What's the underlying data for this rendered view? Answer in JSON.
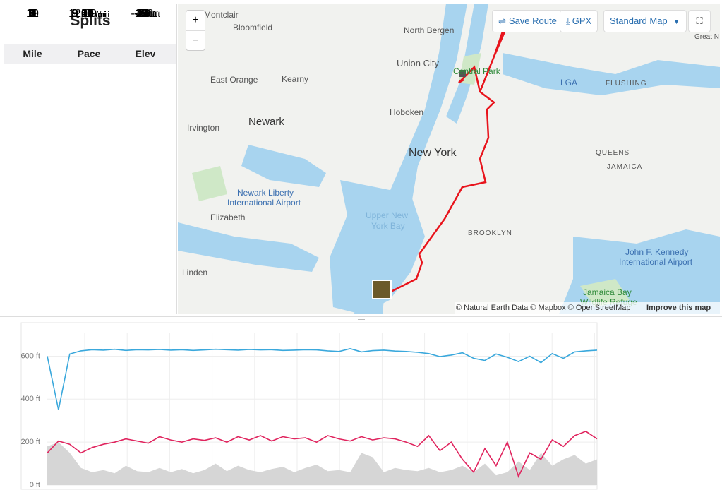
{
  "splits": {
    "title": "Splits",
    "columns": [
      "Mile",
      "Pace",
      "Elev"
    ],
    "rows": [
      [
        "1",
        "12:09",
        "/mi",
        "43",
        "ft"
      ],
      [
        "2",
        "9:36",
        "/mi",
        "-103",
        "ft"
      ],
      [
        "3",
        "9:01",
        "/mi",
        "14",
        "ft"
      ],
      [
        "4",
        "9:02",
        "/mi",
        "21",
        "ft"
      ],
      [
        "5",
        "8:54",
        "/mi",
        "-53",
        "ft"
      ],
      [
        "6",
        "9:12",
        "/mi",
        "20",
        "ft"
      ],
      [
        "7",
        "9:02",
        "/mi",
        "-30",
        "ft"
      ],
      [
        "8",
        "9:20",
        "/mi",
        "48",
        "ft"
      ],
      [
        "9",
        "9:03",
        "/mi",
        "-9",
        "ft"
      ],
      [
        "10",
        "9:11",
        "/mi",
        "-20",
        "ft"
      ],
      [
        "11",
        "9:27",
        "/mi",
        "5",
        "ft"
      ],
      [
        "12",
        "9:26",
        "/mi",
        "-13",
        "ft"
      ]
    ]
  },
  "map": {
    "controls": {
      "zoom_in": "+",
      "zoom_out": "−",
      "save_route": "Save Route",
      "gpx": "GPX",
      "map_style": "Standard Map"
    },
    "labels": [
      "Montclair",
      "Bloomfield",
      "North Bergen",
      "Union City",
      "Central Park",
      "East Orange",
      "Kearny",
      "LGA",
      "FLUSHING",
      "Hoboken",
      "Newark",
      "Irvington",
      "New York",
      "QUEENS",
      "JAMAICA",
      "Newark Liberty",
      "International Airport",
      "Elizabeth",
      "Upper New",
      "York Bay",
      "BROOKLYN",
      "John F. Kennedy",
      "International Airport",
      "Linden",
      "Jamaica Bay",
      "Wildlife Refuge",
      "Great N"
    ],
    "attribution": "© Natural Earth Data © Mapbox © OpenStreetMap",
    "improve_link": "Improve this map"
  },
  "chart_data": {
    "type": "line",
    "ylim": [
      0,
      710
    ],
    "yticks": [
      {
        "value": 0,
        "label": "0 ft"
      },
      {
        "value": 200,
        "label": "200 ft"
      },
      {
        "value": 400,
        "label": "400 ft"
      },
      {
        "value": 600,
        "label": "600 ft"
      }
    ],
    "grid": true,
    "series": [
      {
        "color": "#d6d6d6",
        "type": "area",
        "values": [
          180,
          200,
          150,
          80,
          60,
          70,
          55,
          90,
          65,
          60,
          80,
          60,
          75,
          55,
          70,
          100,
          65,
          90,
          70,
          60,
          75,
          85,
          60,
          80,
          95,
          65,
          70,
          60,
          150,
          130,
          60,
          80,
          70,
          65,
          80,
          60,
          70,
          90,
          60,
          100,
          45,
          60,
          110,
          70,
          150,
          90,
          120,
          140,
          100,
          120
        ]
      },
      {
        "color": "#e0245e",
        "values": [
          150,
          205,
          190,
          150,
          175,
          190,
          200,
          215,
          205,
          195,
          225,
          210,
          200,
          215,
          208,
          220,
          200,
          225,
          210,
          230,
          205,
          225,
          215,
          220,
          200,
          230,
          215,
          205,
          225,
          210,
          220,
          215,
          200,
          180,
          230,
          160,
          200,
          120,
          60,
          170,
          90,
          200,
          40,
          150,
          120,
          210,
          180,
          230,
          250,
          215
        ]
      },
      {
        "color": "#3aa8dc",
        "values": [
          600,
          350,
          610,
          625,
          630,
          628,
          632,
          627,
          630,
          629,
          631,
          628,
          630,
          627,
          629,
          632,
          630,
          628,
          631,
          629,
          630,
          627,
          628,
          630,
          629,
          625,
          622,
          635,
          620,
          626,
          628,
          624,
          622,
          618,
          612,
          598,
          605,
          616,
          590,
          580,
          610,
          595,
          575,
          600,
          570,
          612,
          590,
          620,
          625,
          628
        ]
      }
    ]
  }
}
